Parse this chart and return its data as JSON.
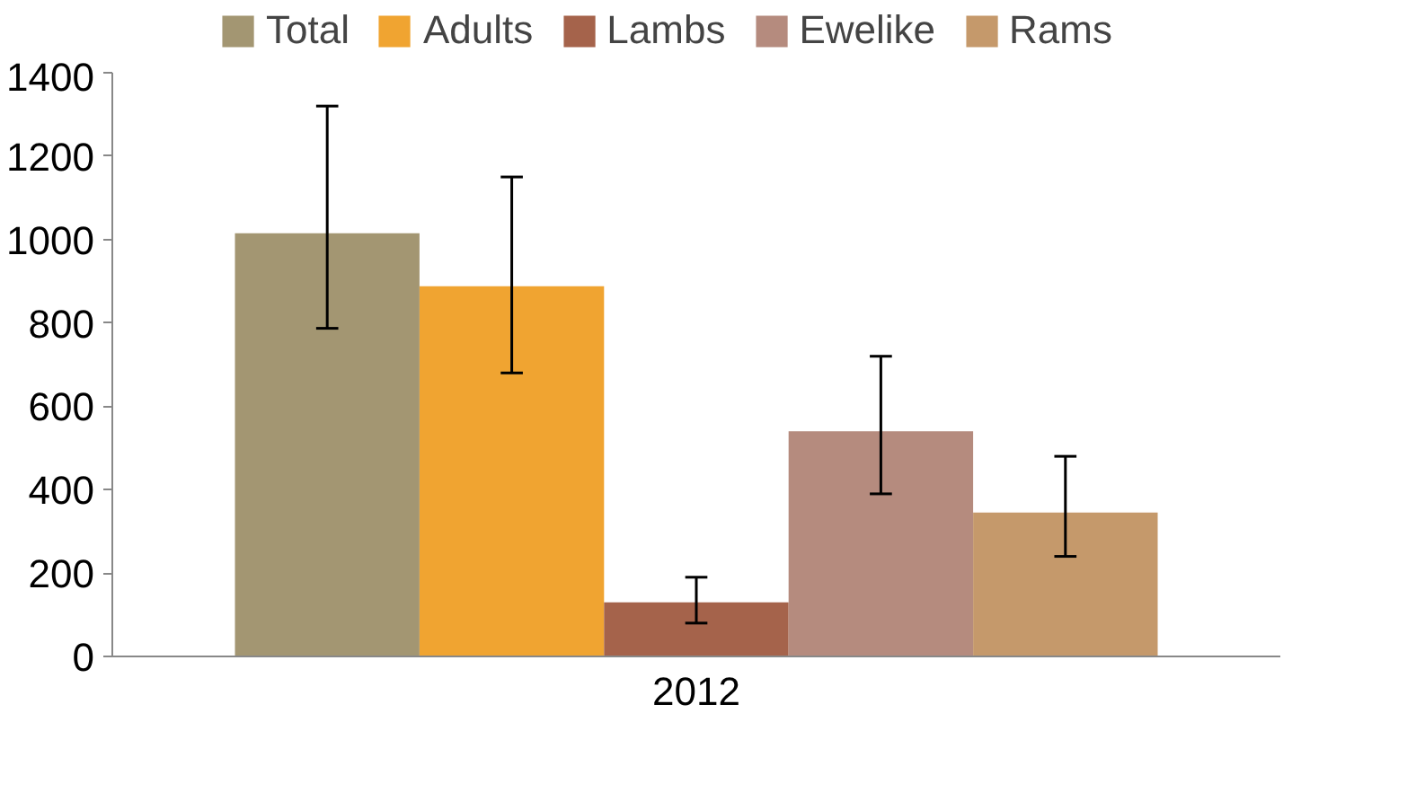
{
  "chart_data": {
    "type": "bar",
    "categories": [
      "2012"
    ],
    "series": [
      {
        "name": "Total",
        "color": "#a39672",
        "values": [
          1015
        ],
        "errors": [
          [
            787,
            1320
          ]
        ]
      },
      {
        "name": "Adults",
        "color": "#f0a431",
        "values": [
          888
        ],
        "errors": [
          [
            680,
            1150
          ]
        ]
      },
      {
        "name": "Lambs",
        "color": "#a5634b",
        "values": [
          130
        ],
        "errors": [
          [
            80,
            190
          ]
        ]
      },
      {
        "name": "Ewelike",
        "color": "#b58b7e",
        "values": [
          540
        ],
        "errors": [
          [
            390,
            720
          ]
        ]
      },
      {
        "name": "Rams",
        "color": "#c5996b",
        "values": [
          345
        ],
        "errors": [
          [
            240,
            480
          ]
        ]
      }
    ],
    "ylim": [
      0,
      1400
    ],
    "yticks": [
      0,
      200,
      400,
      600,
      800,
      1000,
      1200,
      1400
    ],
    "grid": false,
    "legend": "top"
  }
}
